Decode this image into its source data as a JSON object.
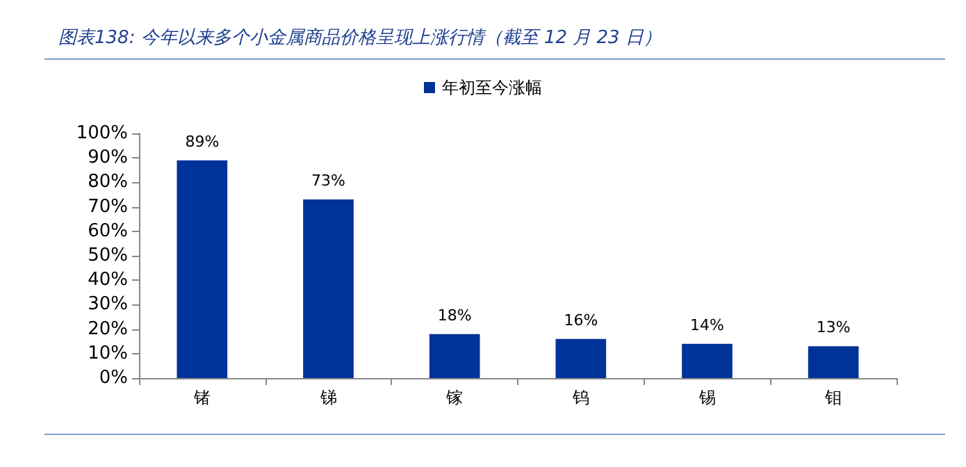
{
  "chart_data": {
    "type": "bar",
    "title": "图表138:  今年以来多个小金属商品价格呈现上涨行情（截至 12 月 23 日）",
    "categories": [
      "锗",
      "锑",
      "镓",
      "钨",
      "锡",
      "钼"
    ],
    "series": [
      {
        "name": "年初至今涨幅",
        "color": "#003399",
        "values": [
          89,
          73,
          18,
          16,
          14,
          13
        ],
        "value_labels": [
          "89%",
          "73%",
          "18%",
          "16%",
          "14%",
          "13%"
        ]
      }
    ],
    "ylim": [
      0,
      100
    ],
    "yticks": [
      {
        "value": 0,
        "label": "0%"
      },
      {
        "value": 10,
        "label": "10%"
      },
      {
        "value": 20,
        "label": "20%"
      },
      {
        "value": 30,
        "label": "30%"
      },
      {
        "value": 40,
        "label": "40%"
      },
      {
        "value": 50,
        "label": "50%"
      },
      {
        "value": 60,
        "label": "60%"
      },
      {
        "value": 70,
        "label": "70%"
      },
      {
        "value": 80,
        "label": "80%"
      },
      {
        "value": 90,
        "label": "90%"
      },
      {
        "value": 100,
        "label": "100%"
      }
    ],
    "grid": false,
    "legend": "top"
  }
}
